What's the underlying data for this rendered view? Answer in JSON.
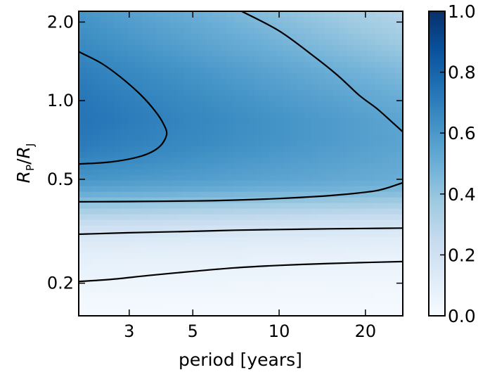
{
  "chart_data": {
    "type": "heatmap",
    "title": "",
    "xlabel": "period [years]",
    "ylabel": {
      "main": "R",
      "sub_p": "P",
      "slash": "/",
      "main2": "R",
      "sub_j": "J"
    },
    "x_scale": "log",
    "y_scale": "log",
    "xlim": [
      2.0,
      27.0
    ],
    "ylim": [
      0.15,
      2.2
    ],
    "x_ticks": [
      {
        "value": 3,
        "label": "3"
      },
      {
        "value": 5,
        "label": "5"
      },
      {
        "value": 10,
        "label": "10"
      },
      {
        "value": 20,
        "label": "20"
      }
    ],
    "y_ticks": [
      {
        "value": 0.2,
        "label": "0.2"
      },
      {
        "value": 0.5,
        "label": "0.5"
      },
      {
        "value": 1.0,
        "label": "1.0"
      },
      {
        "value": 2.0,
        "label": "2.0"
      }
    ],
    "colormap": "Blues",
    "colorbar": {
      "range": [
        0.0,
        1.0
      ],
      "ticks": [
        {
          "value": 0.0,
          "label": "0.0"
        },
        {
          "value": 0.2,
          "label": "0.2"
        },
        {
          "value": 0.4,
          "label": "0.4"
        },
        {
          "value": 0.6,
          "label": "0.6"
        },
        {
          "value": 0.8,
          "label": "0.8"
        },
        {
          "value": 1.0,
          "label": "1.0"
        }
      ]
    },
    "contour_line_color": "#000000",
    "contours": [
      {
        "points": [
          [
            2.0,
            0.203
          ],
          [
            2.6,
            0.207
          ],
          [
            3.5,
            0.214
          ],
          [
            5.0,
            0.222
          ],
          [
            7.0,
            0.229
          ],
          [
            10.0,
            0.234
          ],
          [
            15.0,
            0.238
          ],
          [
            20.0,
            0.24
          ],
          [
            27.0,
            0.242
          ]
        ]
      },
      {
        "points": [
          [
            2.0,
            0.308
          ],
          [
            3.0,
            0.312
          ],
          [
            5.0,
            0.316
          ],
          [
            7.0,
            0.319
          ],
          [
            10.0,
            0.321
          ],
          [
            15.0,
            0.323
          ],
          [
            20.0,
            0.324
          ],
          [
            27.0,
            0.325
          ]
        ]
      },
      {
        "points": [
          [
            2.0,
            0.41
          ],
          [
            3.0,
            0.411
          ],
          [
            5.0,
            0.413
          ],
          [
            7.0,
            0.416
          ],
          [
            10.0,
            0.422
          ],
          [
            15.0,
            0.433
          ],
          [
            20.0,
            0.446
          ],
          [
            23.0,
            0.458
          ],
          [
            27.0,
            0.485
          ]
        ]
      },
      {
        "points": [
          [
            2.0,
            0.572
          ],
          [
            2.6,
            0.583
          ],
          [
            3.3,
            0.613
          ],
          [
            3.8,
            0.662
          ],
          [
            4.05,
            0.74
          ],
          [
            3.95,
            0.815
          ],
          [
            3.7,
            0.91
          ],
          [
            3.3,
            1.05
          ],
          [
            2.8,
            1.23
          ],
          [
            2.4,
            1.39
          ],
          [
            2.0,
            1.54
          ]
        ]
      },
      {
        "points": [
          [
            7.4,
            2.2
          ],
          [
            10.0,
            1.85
          ],
          [
            13.0,
            1.5
          ],
          [
            16.0,
            1.25
          ],
          [
            19.0,
            1.05
          ],
          [
            22.0,
            0.93
          ],
          [
            25.0,
            0.82
          ],
          [
            27.0,
            0.76
          ]
        ]
      }
    ],
    "field": {
      "y_profile": [
        [
          0.15,
          0.01
        ],
        [
          0.2,
          0.05
        ],
        [
          0.25,
          0.09
        ],
        [
          0.3,
          0.15
        ],
        [
          0.34,
          0.24
        ],
        [
          0.38,
          0.35
        ],
        [
          0.42,
          0.46
        ],
        [
          0.46,
          0.55
        ],
        [
          0.5,
          0.61
        ],
        [
          0.6,
          0.68
        ],
        [
          0.7,
          0.72
        ],
        [
          0.85,
          0.74
        ],
        [
          1.0,
          0.73
        ],
        [
          1.3,
          0.7
        ],
        [
          1.6,
          0.66
        ],
        [
          2.2,
          0.61
        ]
      ],
      "x_decline": [
        [
          0.15,
          0.0
        ],
        [
          0.3,
          0.03
        ],
        [
          0.45,
          0.08
        ],
        [
          0.6,
          0.15
        ],
        [
          1.0,
          0.22
        ],
        [
          1.5,
          0.27
        ],
        [
          2.2,
          0.31
        ]
      ]
    }
  }
}
